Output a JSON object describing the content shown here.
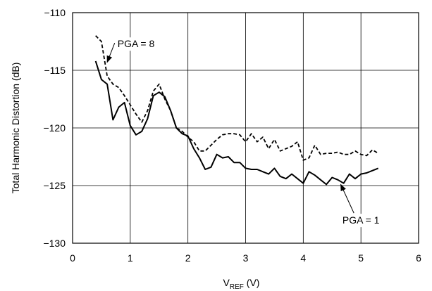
{
  "chart_data": {
    "type": "line",
    "xlabel": {
      "main": "V",
      "sub": "REF",
      "unit": " (V)"
    },
    "ylabel": "Total Harmonic Distortion (dB)",
    "xlim": [
      0,
      6
    ],
    "ylim": [
      -130,
      -110
    ],
    "xticks": [
      0,
      1,
      2,
      3,
      4,
      5,
      6
    ],
    "yticks": [
      -110,
      -115,
      -120,
      -125,
      -130
    ],
    "x_tick_labels": [
      "0",
      "1",
      "2",
      "3",
      "4",
      "5",
      "6"
    ],
    "y_tick_labels": [
      "−110",
      "−115",
      "−120",
      "−125",
      "−130"
    ],
    "grid": true,
    "series": [
      {
        "name": "PGA = 8",
        "style": "dashed",
        "color": "#000000",
        "x": [
          0.4,
          0.5,
          0.6,
          0.7,
          0.8,
          0.9,
          1.0,
          1.1,
          1.2,
          1.3,
          1.4,
          1.5,
          1.6,
          1.7,
          1.8,
          1.9,
          2.0,
          2.1,
          2.2,
          2.3,
          2.4,
          2.5,
          2.6,
          2.7,
          2.8,
          2.9,
          3.0,
          3.1,
          3.2,
          3.3,
          3.4,
          3.5,
          3.6,
          3.7,
          3.8,
          3.9,
          4.0,
          4.1,
          4.2,
          4.3,
          4.4,
          4.5,
          4.6,
          4.7,
          4.8,
          4.9,
          5.0,
          5.1,
          5.2,
          5.3
        ],
        "y": [
          -112.0,
          -112.5,
          -115.5,
          -116.2,
          -116.5,
          -117.2,
          -118.0,
          -118.8,
          -119.5,
          -118.5,
          -116.8,
          -116.2,
          -117.5,
          -118.5,
          -120.0,
          -120.3,
          -120.8,
          -121.2,
          -122.0,
          -122.0,
          -121.5,
          -121.0,
          -120.6,
          -120.5,
          -120.5,
          -120.6,
          -121.2,
          -120.5,
          -121.2,
          -120.8,
          -121.8,
          -121.0,
          -122.0,
          -121.8,
          -121.6,
          -121.2,
          -122.8,
          -122.6,
          -121.5,
          -122.3,
          -122.2,
          -122.2,
          -122.1,
          -122.3,
          -122.3,
          -122.0,
          -122.3,
          -122.4,
          -121.9,
          -122.2
        ]
      },
      {
        "name": "PGA = 1",
        "style": "solid",
        "color": "#000000",
        "x": [
          0.4,
          0.5,
          0.6,
          0.7,
          0.8,
          0.9,
          1.0,
          1.1,
          1.2,
          1.3,
          1.4,
          1.5,
          1.6,
          1.7,
          1.8,
          1.9,
          2.0,
          2.1,
          2.2,
          2.3,
          2.4,
          2.5,
          2.6,
          2.7,
          2.8,
          2.9,
          3.0,
          3.1,
          3.2,
          3.3,
          3.4,
          3.5,
          3.6,
          3.7,
          3.8,
          3.9,
          4.0,
          4.1,
          4.2,
          4.3,
          4.4,
          4.5,
          4.6,
          4.7,
          4.8,
          4.9,
          5.0,
          5.1,
          5.2,
          5.3
        ],
        "y": [
          -114.2,
          -115.8,
          -116.2,
          -119.3,
          -118.2,
          -117.8,
          -119.8,
          -120.6,
          -120.3,
          -119.2,
          -117.2,
          -116.9,
          -117.3,
          -118.5,
          -120.0,
          -120.5,
          -120.7,
          -121.8,
          -122.6,
          -123.6,
          -123.4,
          -122.3,
          -122.6,
          -122.5,
          -123.0,
          -123.0,
          -123.5,
          -123.6,
          -123.6,
          -123.8,
          -124.0,
          -123.5,
          -124.2,
          -124.4,
          -124.0,
          -124.4,
          -124.8,
          -123.8,
          -124.1,
          -124.5,
          -124.9,
          -124.3,
          -124.5,
          -124.8,
          -124.0,
          -124.4,
          -124.0,
          -123.9,
          -123.7,
          -123.5
        ]
      }
    ],
    "annotations": [
      {
        "text": "PGA = 8",
        "series": "PGA = 8",
        "at_x": 0.6,
        "at_y": -114.3,
        "text_x": 1.1,
        "text_y": -113.0
      },
      {
        "text": "PGA = 1",
        "series": "PGA = 1",
        "at_x": 4.65,
        "at_y": -124.9,
        "text_x": 5.0,
        "text_y": -128.3
      }
    ]
  }
}
